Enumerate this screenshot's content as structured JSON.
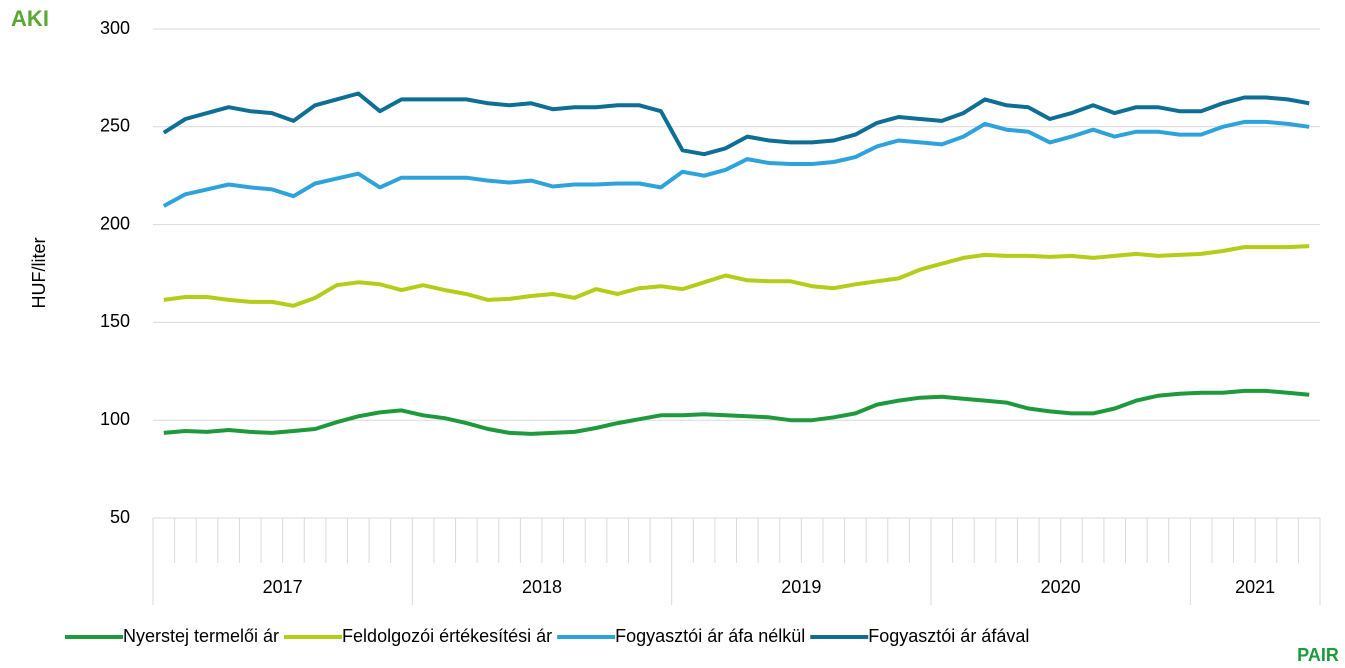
{
  "chart_data": {
    "type": "line",
    "y_label": "HUF/liter",
    "logos": [
      "AKI",
      "PAIR"
    ],
    "categories": [
      null,
      null,
      null,
      null,
      null,
      null,
      null,
      null,
      null,
      null,
      null,
      null,
      null,
      null,
      null,
      null,
      null,
      null,
      null,
      null,
      null,
      null,
      null,
      null,
      null,
      null,
      null,
      null,
      null,
      null,
      null,
      null,
      null,
      null,
      null,
      null,
      null,
      null,
      null,
      null,
      null,
      null,
      null,
      null,
      null,
      null,
      null,
      null,
      null,
      null,
      null,
      null,
      null,
      null
    ],
    "groups": [
      {
        "label": "2017",
        "span": 12
      },
      {
        "label": "2018",
        "span": 12
      },
      {
        "label": "2019",
        "span": 12
      },
      {
        "label": "2020",
        "span": 12
      },
      {
        "label": "2021",
        "span": 6
      }
    ],
    "ylim": [
      50,
      300
    ],
    "yticks": [
      50,
      100,
      150,
      200,
      250,
      300
    ],
    "grid": true,
    "legend": "bottom",
    "series": [
      {
        "name": "Nyerstej termelői ár",
        "color": "#1e9a3c",
        "values": [
          93.5,
          94.5,
          94,
          95,
          94,
          93.5,
          94.5,
          95.5,
          99,
          102,
          104,
          105,
          102.5,
          101,
          98.5,
          95.5,
          93.5,
          93,
          93.5,
          94,
          96,
          98.5,
          100.5,
          102.5,
          102.5,
          103,
          102.5,
          102,
          101.5,
          100,
          100,
          101.5,
          103.5,
          108,
          110,
          111.5,
          112,
          111,
          110,
          109,
          106,
          104.5,
          103.5,
          103.5,
          106,
          110,
          112.5,
          113.5,
          114,
          114,
          115,
          115,
          114,
          113
        ]
      },
      {
        "name": "Feldolgozói értékesítési ár",
        "color": "#b5cc18",
        "values": [
          161.5,
          163,
          163,
          161.5,
          160.5,
          160.5,
          158.5,
          162.5,
          169,
          170.5,
          169.5,
          166.5,
          169,
          166.5,
          164.5,
          161.5,
          162,
          163.5,
          164.5,
          162.5,
          167,
          164.5,
          167.5,
          168.5,
          167,
          170.5,
          174,
          171.5,
          171,
          171,
          168.5,
          167.5,
          169.5,
          171,
          172.5,
          177,
          180,
          183,
          184.5,
          184,
          184,
          183.5,
          184,
          183,
          184,
          185,
          184,
          184.5,
          185,
          186.5,
          188.5,
          188.5,
          188.5,
          189
        ]
      },
      {
        "name": "Fogyasztói ár áfa nélkül",
        "color": "#2ea3db",
        "values": [
          209.5,
          215.5,
          218,
          220.5,
          219,
          218,
          214.5,
          221,
          223.5,
          226,
          219,
          224,
          224,
          224,
          224,
          222.5,
          221.5,
          222.5,
          219.5,
          220.5,
          220.5,
          221,
          221,
          219,
          227,
          225,
          228,
          233.5,
          231.5,
          231,
          231,
          232,
          234.5,
          240,
          243,
          242,
          241,
          245,
          251.5,
          248.5,
          247.5,
          242,
          245,
          248.5,
          245,
          247.5,
          247.5,
          246,
          246,
          250,
          252.5,
          252.5,
          251.5,
          250
        ]
      },
      {
        "name": "Fogyasztói ár áfával",
        "color": "#0e6e94",
        "values": [
          247,
          254,
          257,
          260,
          258,
          257,
          253,
          261,
          264,
          267,
          258,
          264,
          264,
          264,
          264,
          262,
          261,
          262,
          259,
          260,
          260,
          261,
          261,
          258,
          238,
          236,
          239,
          245,
          243,
          242,
          242,
          243,
          246,
          252,
          255,
          254,
          253,
          257,
          264,
          261,
          260,
          254,
          257,
          261,
          257,
          260,
          260,
          258,
          258,
          262,
          265,
          265,
          264,
          262
        ]
      }
    ]
  }
}
